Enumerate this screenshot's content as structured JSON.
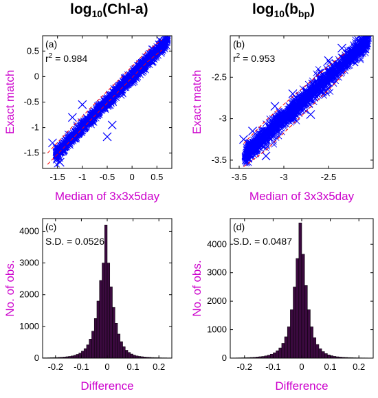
{
  "column_titles": [
    {
      "main": "log",
      "base": "10",
      "arg": "(Chl-a)",
      "sub": ""
    },
    {
      "main": "log",
      "base": "10",
      "arg_pre": "(b",
      "sub": "bp",
      "arg_post": ")"
    }
  ],
  "colors": {
    "points": "#0000ff",
    "envelope": "#ff0000",
    "bars": "#3b0a3f",
    "axis_label": "#cc00cc"
  },
  "chart_data": [
    {
      "type": "scatter",
      "panel_label": "(a)",
      "stat_text": {
        "prefix": "r",
        "sup": "2",
        "rest": " = 0.984"
      },
      "xlabel": "Median of 3x3x5day",
      "ylabel": "Exact match",
      "xlim": [
        -1.8,
        0.8
      ],
      "ylim": [
        -1.8,
        0.8
      ],
      "xticks": [
        -1.5,
        -1,
        -0.5,
        0,
        0.5
      ],
      "xtick_labels": [
        "-1.5",
        "-1",
        "-0.5",
        "0",
        "0.5"
      ],
      "yticks": [
        -1.5,
        -1,
        -0.5,
        0,
        0.5
      ],
      "ytick_labels": [
        "-1.5",
        "-1",
        "-0.5",
        "0",
        "0.5"
      ],
      "scatter_spread": 0.06,
      "n_points": 1500,
      "outliers": [
        [
          -1.0,
          -0.55
        ],
        [
          -0.5,
          -1.18
        ],
        [
          -0.4,
          -0.95
        ],
        [
          -1.6,
          -1.3
        ],
        [
          -1.2,
          -0.8
        ],
        [
          0.55,
          0.62
        ],
        [
          -1.45,
          -1.68
        ]
      ],
      "envelope": {
        "x": [
          -1.7,
          -1.2,
          -0.7,
          -0.2,
          0.3,
          0.6
        ],
        "upper": [
          -1.5,
          -0.98,
          -0.48,
          0.0,
          0.5,
          0.72
        ],
        "lower": [
          -1.72,
          -1.22,
          -0.72,
          -0.22,
          0.28,
          0.52
        ]
      }
    },
    {
      "type": "scatter",
      "panel_label": "(b)",
      "stat_text": {
        "prefix": "r",
        "sup": "2",
        "rest": " = 0.953"
      },
      "xlabel": "Median of 3x3x5day",
      "ylabel": "Exact match",
      "xlim": [
        -3.6,
        -2.0
      ],
      "ylim": [
        -3.6,
        -2.0
      ],
      "xticks": [
        -3.5,
        -3,
        -2.5
      ],
      "xtick_labels": [
        "-3.5",
        "-3",
        "-2.5"
      ],
      "yticks": [
        -3.5,
        -3,
        -2.5
      ],
      "ytick_labels": [
        "-3.5",
        "-3",
        "-2.5"
      ],
      "scatter_spread": 0.06,
      "n_points": 1500,
      "outliers": [
        [
          -3.35,
          -3.15
        ],
        [
          -3.2,
          -3.45
        ],
        [
          -2.9,
          -2.7
        ],
        [
          -2.7,
          -2.95
        ],
        [
          -2.5,
          -2.3
        ],
        [
          -3.45,
          -3.25
        ],
        [
          -2.35,
          -2.15
        ],
        [
          -3.1,
          -2.85
        ]
      ],
      "envelope": {
        "x": [
          -3.45,
          -3.2,
          -2.95,
          -2.7,
          -2.45,
          -2.3
        ],
        "upper": [
          -3.3,
          -3.02,
          -2.78,
          -2.55,
          -2.32,
          -2.2
        ],
        "lower": [
          -3.58,
          -3.38,
          -3.12,
          -2.86,
          -2.6,
          -2.42
        ]
      }
    },
    {
      "type": "bar",
      "panel_label": "(c)",
      "stat_text": {
        "prefix": "S.D. = 0.0526",
        "sup": "",
        "rest": ""
      },
      "xlabel": "Difference",
      "ylabel": "No. of obs.",
      "xlim": [
        -0.25,
        0.25
      ],
      "ylim": [
        0,
        4400
      ],
      "xticks": [
        -0.2,
        -0.1,
        0,
        0.1,
        0.2
      ],
      "xtick_labels": [
        "-0.2",
        "-0.1",
        "0",
        "0.1",
        "0.2"
      ],
      "yticks": [
        0,
        1000,
        2000,
        3000,
        4000
      ],
      "ytick_labels": [
        "0",
        "1000",
        "2000",
        "3000",
        "4000"
      ],
      "bin_width": 0.01,
      "bin_centers": [
        -0.245,
        -0.235,
        -0.225,
        -0.215,
        -0.205,
        -0.195,
        -0.185,
        -0.175,
        -0.165,
        -0.155,
        -0.145,
        -0.135,
        -0.125,
        -0.115,
        -0.105,
        -0.095,
        -0.085,
        -0.075,
        -0.065,
        -0.055,
        -0.045,
        -0.035,
        -0.025,
        -0.015,
        -0.005,
        0.005,
        0.015,
        0.025,
        0.035,
        0.045,
        0.055,
        0.065,
        0.075,
        0.085,
        0.095,
        0.105,
        0.115,
        0.125,
        0.135,
        0.145,
        0.155,
        0.165,
        0.175,
        0.185,
        0.195,
        0.205,
        0.215,
        0.225,
        0.235,
        0.245
      ],
      "values": [
        10,
        10,
        12,
        15,
        18,
        20,
        25,
        30,
        35,
        45,
        55,
        70,
        90,
        120,
        160,
        220,
        300,
        420,
        600,
        850,
        1250,
        1800,
        2450,
        3000,
        4200,
        3000,
        2250,
        1600,
        1100,
        760,
        520,
        360,
        250,
        180,
        130,
        95,
        70,
        55,
        45,
        35,
        30,
        25,
        20,
        18,
        15,
        12,
        10,
        10,
        8,
        8
      ]
    },
    {
      "type": "bar",
      "panel_label": "(d)",
      "stat_text": {
        "prefix": "S.D. = 0.0487",
        "sup": "",
        "rest": ""
      },
      "xlabel": "Difference",
      "ylabel": "No. of obs.",
      "xlim": [
        -0.25,
        0.25
      ],
      "ylim": [
        0,
        4900
      ],
      "xticks": [
        -0.2,
        -0.1,
        0,
        0.1,
        0.2
      ],
      "xtick_labels": [
        "-0.2",
        "-0.1",
        "0",
        "0.1",
        "0.2"
      ],
      "yticks": [
        0,
        1000,
        2000,
        3000,
        4000
      ],
      "ytick_labels": [
        "0",
        "1000",
        "2000",
        "3000",
        "4000"
      ],
      "bin_width": 0.01,
      "bin_centers": [
        -0.245,
        -0.235,
        -0.225,
        -0.215,
        -0.205,
        -0.195,
        -0.185,
        -0.175,
        -0.165,
        -0.155,
        -0.145,
        -0.135,
        -0.125,
        -0.115,
        -0.105,
        -0.095,
        -0.085,
        -0.075,
        -0.065,
        -0.055,
        -0.045,
        -0.035,
        -0.025,
        -0.015,
        -0.005,
        0.005,
        0.015,
        0.025,
        0.035,
        0.045,
        0.055,
        0.065,
        0.075,
        0.085,
        0.095,
        0.105,
        0.115,
        0.125,
        0.135,
        0.145,
        0.155,
        0.165,
        0.175,
        0.185,
        0.195,
        0.205,
        0.215,
        0.225,
        0.235,
        0.245
      ],
      "values": [
        8,
        8,
        10,
        12,
        14,
        16,
        20,
        25,
        30,
        40,
        50,
        60,
        80,
        105,
        140,
        190,
        260,
        360,
        520,
        750,
        1100,
        1700,
        2500,
        3500,
        4750,
        3650,
        2550,
        1700,
        1100,
        720,
        480,
        330,
        230,
        160,
        115,
        85,
        62,
        48,
        38,
        30,
        25,
        20,
        17,
        14,
        12,
        10,
        9,
        8,
        7,
        7
      ]
    }
  ]
}
